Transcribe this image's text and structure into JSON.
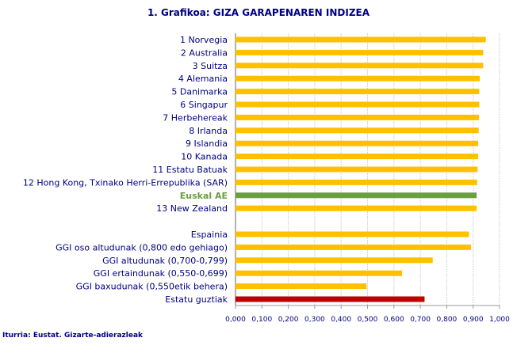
{
  "chart_data": {
    "type": "bar",
    "orientation": "horizontal",
    "title": "1. Grafikoa: GIZA GARAPENAREN INDIZEA",
    "xlabel": "",
    "ylabel": "",
    "xlim": [
      0,
      1
    ],
    "grid": true,
    "legend": "none",
    "tick_labels": [
      "0,000",
      "0,100",
      "0,200",
      "0,300",
      "0,400",
      "0,500",
      "0,600",
      "0,700",
      "0,800",
      "0,900",
      "1,000"
    ],
    "categories": [
      "1 Norvegia",
      "2 Australia",
      "3 Suitza",
      "4 Alemania",
      "5 Danimarka",
      "6 Singapur",
      "7 Herbehereak",
      "8 Irlanda",
      "9 Islandia",
      "10 Kanada",
      "11 Estatu Batuak",
      "12 Hong Kong, Txinako Herri-Errepublika (SAR)",
      "Euskal AE",
      "13 New Zealand",
      "",
      "Espainia",
      "GGI oso altudunak (0,800 edo gehiago)",
      "GGI altudunak (0,700-0,799)",
      "GGI ertaindunak (0,550-0,699)",
      "GGI baxudunak (0,550etik behera)",
      "Estatu guztiak"
    ],
    "values": [
      0.948,
      0.938,
      0.938,
      0.925,
      0.923,
      0.923,
      0.922,
      0.921,
      0.919,
      0.919,
      0.917,
      0.915,
      0.913,
      0.913,
      null,
      0.884,
      0.892,
      0.747,
      0.631,
      0.496,
      0.716
    ],
    "highlight": {
      "Euskal AE": "#6a9e3f",
      "Estatu guztiak": "#c00000"
    },
    "bar_color": "#ffc000",
    "label_color": "#000080"
  },
  "source": "Iturria: Eustat. Gizarte-adierazleak"
}
